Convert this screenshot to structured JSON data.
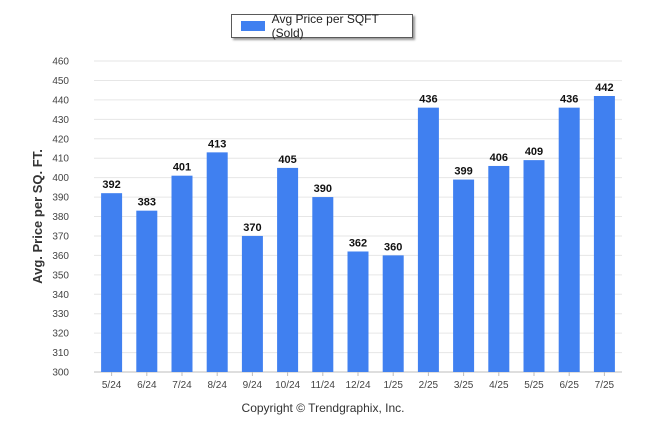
{
  "legend": {
    "label": "Avg Price per SQFT (Sold)"
  },
  "footer": {
    "copyright": "Copyright © Trendgraphix, Inc."
  },
  "colors": {
    "bar": "#4080f0",
    "grid": "#e6e6e6",
    "axis_text": "#444444",
    "value_text": "#111111"
  },
  "chart_data": {
    "type": "bar",
    "title": "",
    "xlabel": "",
    "ylabel": "Avg. Price per SQ. FT.",
    "categories": [
      "5/24",
      "6/24",
      "7/24",
      "8/24",
      "9/24",
      "10/24",
      "11/24",
      "12/24",
      "1/25",
      "2/25",
      "3/25",
      "4/25",
      "5/25",
      "6/25",
      "7/25"
    ],
    "values": [
      392,
      383,
      401,
      413,
      370,
      405,
      390,
      362,
      360,
      436,
      399,
      406,
      409,
      436,
      442
    ],
    "ylim": [
      300,
      460
    ],
    "yticks": [
      300,
      310,
      320,
      330,
      340,
      350,
      360,
      370,
      380,
      390,
      400,
      410,
      420,
      430,
      440,
      450,
      460
    ],
    "grid": true,
    "data_labels": true,
    "legend_position": "top-center"
  }
}
